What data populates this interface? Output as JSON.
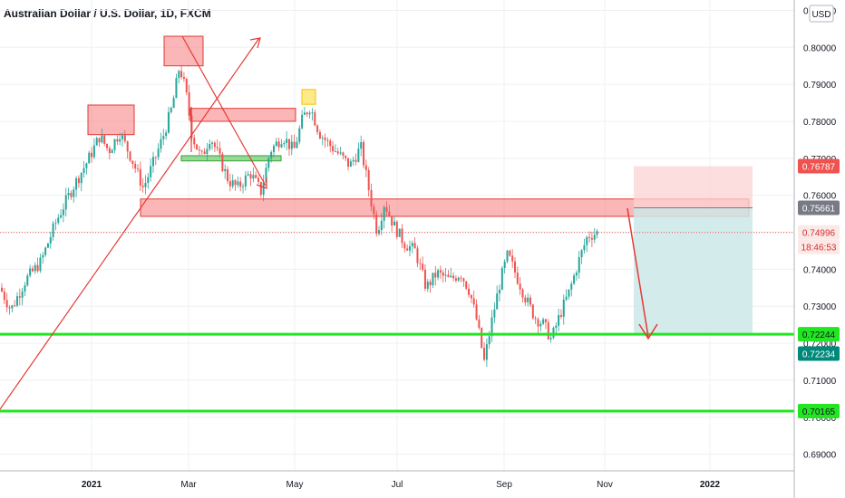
{
  "chart_data": {
    "type": "candlestick",
    "title": "Australian Dollar / U.S. Dollar, 1D, FXCM",
    "currency": "USD",
    "y_ticks": [
      "0.81000",
      "0.80000",
      "0.79000",
      "0.78000",
      "0.77000",
      "0.76000",
      "0.75000",
      "0.74000",
      "0.73000",
      "0.72000",
      "0.71000",
      "0.70000",
      "0.69000"
    ],
    "ylim": [
      0.6855,
      0.8128
    ],
    "x_ticks": [
      "2021",
      "Mar",
      "May",
      "Jul",
      "Sep",
      "Nov",
      "2022"
    ],
    "price_labels": [
      {
        "value": "0.76787",
        "kind": "stop"
      },
      {
        "value": "0.75661",
        "kind": "entry"
      },
      {
        "value": "0.74996",
        "kind": "last"
      },
      {
        "value": "18:46:53",
        "kind": "countdown"
      },
      {
        "value": "0.72244",
        "kind": "support"
      },
      {
        "value": "0.72234",
        "kind": "target"
      },
      {
        "value": "0.70165",
        "kind": "support"
      }
    ],
    "support_lines": [
      0.72244,
      0.70165
    ],
    "last_price": 0.74996,
    "zones": [
      {
        "name": "resistance-zone-jan",
        "ymin": 0.7764,
        "ymax": 0.7844
      },
      {
        "name": "resistance-zone-feb-high",
        "ymin": 0.795,
        "ymax": 0.803
      },
      {
        "name": "resistance-zone-mar-may",
        "ymin": 0.78,
        "ymax": 0.7835
      },
      {
        "name": "support-zone-mar",
        "ymin": 0.7693,
        "ymax": 0.7707
      },
      {
        "name": "main-zone",
        "ymin": 0.7543,
        "ymax": 0.759
      },
      {
        "name": "highlight-may-high",
        "ymin": 0.7846,
        "ymax": 0.7886
      }
    ],
    "position": {
      "entry": 0.75661,
      "stop": 0.76787,
      "target": 0.72234
    },
    "colors": {
      "up": "#26a69a",
      "down": "#ef5350",
      "support": "#22e622",
      "zone": "#f77c7c",
      "zone_border": "#e53935",
      "stop_fill": "#fbd3d3",
      "target_fill": "#cce8e8",
      "entry_label": "#787b86",
      "target_label": "#00897b",
      "last_label": "#ef5350"
    }
  }
}
